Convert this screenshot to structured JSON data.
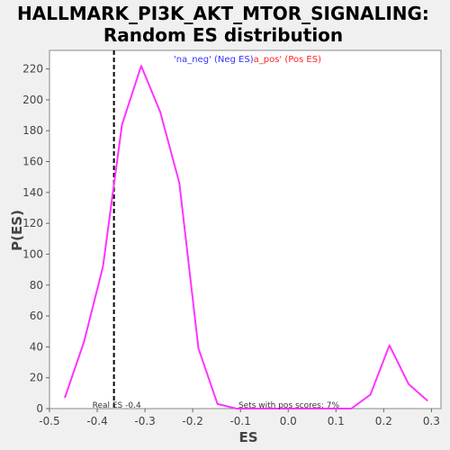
{
  "chart_data": {
    "type": "line",
    "title_line1": "HALLMARK_PI3K_AKT_MTOR_SIGNALING:",
    "title_line2": "Random ES distribution",
    "xlabel": "ES",
    "ylabel": "P(ES)",
    "xlim": [
      -0.5,
      0.32
    ],
    "ylim": [
      0,
      232
    ],
    "x_ticks": [
      -0.5,
      -0.4,
      -0.3,
      -0.2,
      -0.1,
      0.0,
      0.1,
      0.2,
      0.3
    ],
    "x_tick_labels": [
      "-0.5",
      "-0.4",
      "-0.3",
      "-0.2",
      "-0.1",
      "0.0",
      "0.1",
      "0.2",
      "0.3"
    ],
    "y_ticks": [
      0,
      20,
      40,
      60,
      80,
      100,
      120,
      140,
      160,
      180,
      200,
      220
    ],
    "y_tick_labels": [
      "0",
      "20",
      "40",
      "60",
      "80",
      "100",
      "120",
      "140",
      "160",
      "180",
      "200",
      "220"
    ],
    "grid": false,
    "series": [
      {
        "color": "#ff33ff",
        "x": [
          -0.468,
          -0.428,
          -0.388,
          -0.348,
          -0.308,
          -0.268,
          -0.228,
          -0.188,
          -0.148,
          -0.108,
          -0.068,
          -0.028,
          0.012,
          0.052,
          0.092,
          0.132,
          0.172,
          0.212,
          0.252,
          0.292
        ],
        "y": [
          7,
          43,
          92,
          184,
          222,
          192,
          146,
          39,
          3,
          0,
          0,
          0,
          0,
          0,
          0,
          0,
          9,
          41,
          16,
          5
        ]
      }
    ],
    "real_es": {
      "x": -0.365,
      "label": "Real ES -0.4"
    },
    "legend": {
      "neg_label": "'na_neg' (Neg ES)",
      "neg_color": "#3333ff",
      "pos_label": "a_pos' (Pos ES)",
      "pos_color": "#ff2222"
    },
    "annotation": "Sets with pos scores: 7%"
  }
}
